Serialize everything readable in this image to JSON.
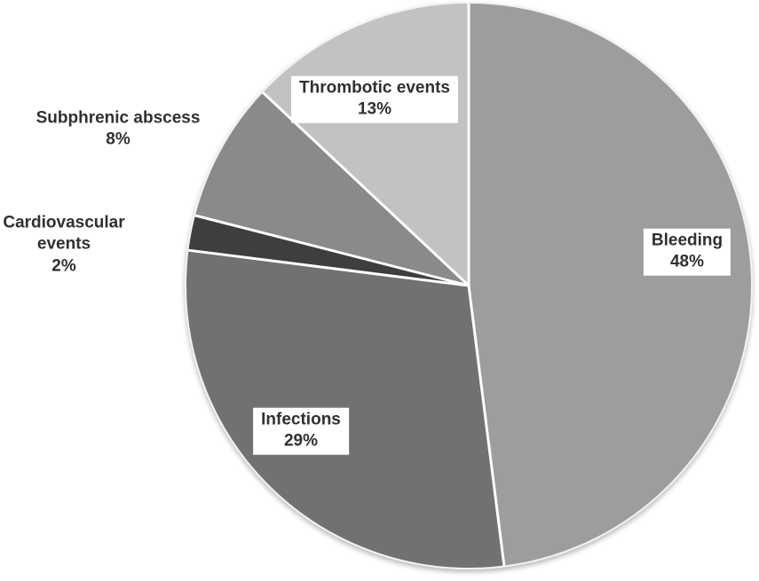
{
  "chart_data": {
    "type": "pie",
    "direction": "clockwise",
    "start_angle_deg": 0,
    "background_color": "#ffffff",
    "separator_color": "#ffffff",
    "text_color": "#303030",
    "legend": "none",
    "slices": [
      {
        "label": "Bleeding",
        "value": 48,
        "pct_label": "48%",
        "color": "#9d9d9d",
        "label_placement": "inside"
      },
      {
        "label": "Infections",
        "value": 29,
        "pct_label": "29%",
        "color": "#717171",
        "label_placement": "inside"
      },
      {
        "label": "Cardiovascular events",
        "value": 2,
        "pct_label": "2%",
        "color": "#3e3e3e",
        "label_placement": "outside"
      },
      {
        "label": "Subphrenic abscess",
        "value": 8,
        "pct_label": "8%",
        "color": "#8a8a8a",
        "label_placement": "outside"
      },
      {
        "label": "Thrombotic events",
        "value": 13,
        "pct_label": "13%",
        "color": "#c2c2c2",
        "label_placement": "inside"
      }
    ]
  }
}
